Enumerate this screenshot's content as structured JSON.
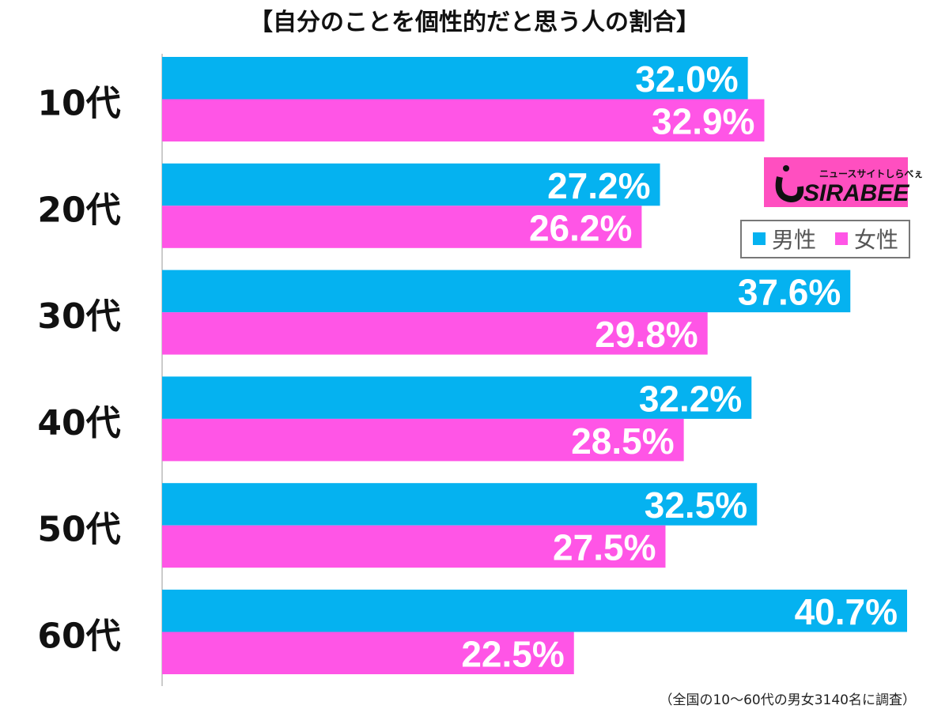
{
  "chart_data": {
    "type": "bar",
    "orientation": "horizontal",
    "title": "【自分のことを個性的だと思う人の割合】",
    "categories": [
      "10代",
      "20代",
      "30代",
      "40代",
      "50代",
      "60代"
    ],
    "series": [
      {
        "name": "男性",
        "color": "#05b2f0",
        "values": [
          32.0,
          27.2,
          37.6,
          32.2,
          32.5,
          40.7
        ]
      },
      {
        "name": "女性",
        "color": "#ff55e6",
        "values": [
          32.9,
          26.2,
          29.8,
          28.5,
          27.5,
          22.5
        ]
      }
    ],
    "value_suffix": "%",
    "xlim": [
      0,
      45
    ],
    "grid": false,
    "legend_placement": "right",
    "footnote": "（全国の10〜60代の男女3140名に調査）"
  },
  "logo": {
    "text": "SIRABEE",
    "subtext": "ニュースサイトしらべぇ",
    "color": "#ff4fc0"
  }
}
